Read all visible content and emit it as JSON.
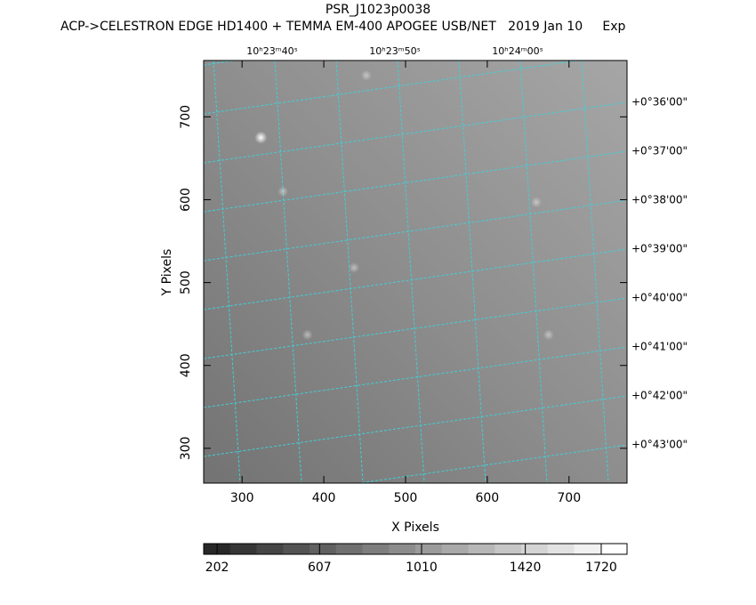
{
  "chart_data": {
    "type": "image",
    "title": "PSR_J1023p0038",
    "subtitle": "ACP->CELESTRON EDGE HD1400 + TEMMA EM-400 APOGEE USB/NET   2019 Jan 10     Exp",
    "x_label": "X Pixels",
    "y_label": "Y Pixels",
    "xlim": [
      253,
      771
    ],
    "xticks": [
      300,
      400,
      500,
      600,
      700
    ],
    "ylim": [
      258,
      768
    ],
    "yticks": [
      300,
      400,
      500,
      600,
      700
    ],
    "ra_labels": [
      "10ʰ23ᵐ40ˢ",
      "10ʰ23ᵐ50ˢ",
      "10ʰ24ᵐ00ˢ"
    ],
    "dec_labels": [
      "+0°36'00\"",
      "+0°37'00\"",
      "+0°38'00\"",
      "+0°39'00\"",
      "+0°40'00\"",
      "+0°41'00\"",
      "+0°42'00\"",
      "+0°43'00\""
    ],
    "stars": {
      "x": [
        323,
        350,
        437,
        380,
        660,
        675,
        452
      ],
      "y": [
        675,
        610,
        518,
        437,
        597,
        437,
        750
      ]
    },
    "colorbar": {
      "lim": [
        149,
        1822
      ],
      "ticks": [
        202,
        607,
        1010,
        1420,
        1720
      ]
    },
    "grid_color": "#40d0d8"
  }
}
